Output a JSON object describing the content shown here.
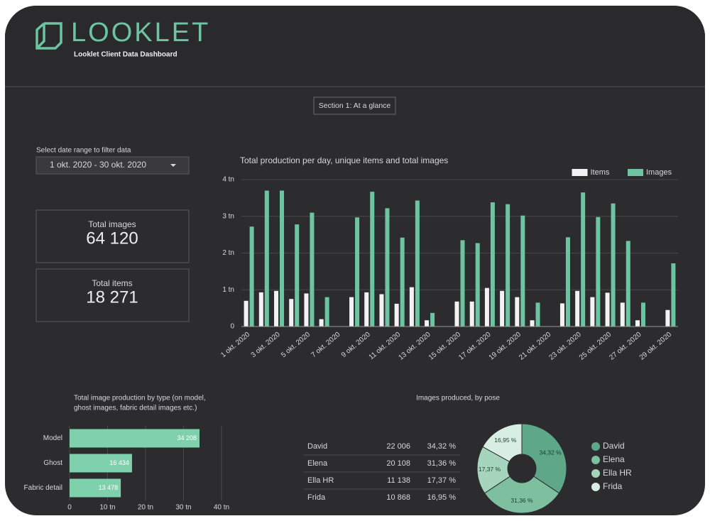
{
  "header": {
    "brand": "LOOKLET",
    "subtitle": "Looklet Client Data Dashboard"
  },
  "section_button": "Section 1: At a glance",
  "date_filter": {
    "label": "Select date range to filter data",
    "value": "1 okt. 2020 - 30 okt. 2020"
  },
  "kpis": [
    {
      "label": "Total images",
      "value": "64 120"
    },
    {
      "label": "Total items",
      "value": "18 271"
    }
  ],
  "table": {
    "rows": [
      [
        "David",
        "22 006",
        "34,32 %"
      ],
      [
        "Elena",
        "20 108",
        "31,36 %"
      ],
      [
        "Ella HR",
        "11 138",
        "17,37 %"
      ],
      [
        "Frida",
        "10 868",
        "16,95 %"
      ]
    ]
  },
  "chart_data": [
    {
      "type": "bar",
      "title": "Total production per day, unique items and total images",
      "categories": [
        "1 okt. 2020",
        null,
        "3 okt. 2020",
        null,
        "5 okt. 2020",
        null,
        "7 okt. 2020",
        null,
        "9 okt. 2020",
        null,
        "11 okt. 2020",
        null,
        "13 okt. 2020",
        null,
        "15 okt. 2020",
        null,
        "17 okt. 2020",
        null,
        "19 okt. 2020",
        null,
        "21 okt. 2020",
        null,
        "23 okt. 2020",
        null,
        "25 okt. 2020",
        null,
        "27 okt. 2020",
        null,
        "29 okt. 2020"
      ],
      "series": [
        {
          "name": "Items",
          "color": "#f2f2f2",
          "values": [
            0.7,
            0.93,
            0.97,
            0.75,
            0.9,
            0.2,
            0,
            0.8,
            0.93,
            0.88,
            0.62,
            1.07,
            0.17,
            0,
            0.68,
            0.68,
            1.05,
            0.97,
            0.8,
            0.17,
            0,
            0.63,
            0.97,
            0.8,
            0.92,
            0.65,
            0.17,
            0,
            0.45
          ]
        },
        {
          "name": "Images",
          "color": "#6cc4a1",
          "values": [
            2.72,
            3.7,
            3.7,
            2.78,
            3.1,
            0.8,
            0,
            2.97,
            3.67,
            3.22,
            2.42,
            3.43,
            0.37,
            0,
            2.35,
            2.27,
            3.38,
            3.33,
            3.02,
            0.65,
            0,
            2.43,
            3.65,
            2.98,
            3.35,
            2.33,
            0.65,
            0,
            1.72
          ]
        }
      ],
      "ylim": [
        0,
        4
      ],
      "yticks": [
        0,
        {
          "value": 1,
          "label": "1 tn"
        },
        {
          "value": 2,
          "label": "2 tn"
        },
        {
          "value": 3,
          "label": "3 tn"
        },
        {
          "value": 4,
          "label": "4 tn"
        }
      ],
      "grid": true,
      "legend": "top-right"
    },
    {
      "type": "hbar",
      "title_lines": [
        "Total image production by type (on model,",
        "ghost images, fabric detail images etc.)"
      ],
      "categories": [
        "Model",
        "Ghost",
        "Fabric detail"
      ],
      "values": [
        34.208,
        16.434,
        13.478
      ],
      "value_labels": [
        "34 208",
        "16 434",
        "13 478"
      ],
      "color": "#7fd1ad",
      "xlim": [
        0,
        40
      ],
      "xticks": [
        0,
        {
          "value": 10,
          "label": "10 tn"
        },
        {
          "value": 20,
          "label": "20 tn"
        },
        {
          "value": 30,
          "label": "30 tn"
        },
        {
          "value": 40,
          "label": "40 tn"
        }
      ],
      "grid": true
    },
    {
      "type": "donut",
      "title": "Images produced, by pose",
      "categories": [
        "David",
        "Elena",
        "Ella HR",
        "Frida"
      ],
      "values": [
        34.32,
        31.36,
        17.37,
        16.95
      ],
      "value_labels": [
        "34,32 %",
        "31,36 %",
        "17,37 %",
        "16,95 %"
      ],
      "colors": [
        "#5ea889",
        "#7dbf9f",
        "#a5d6bd",
        "#d9eee3"
      ],
      "legend": "right"
    }
  ]
}
